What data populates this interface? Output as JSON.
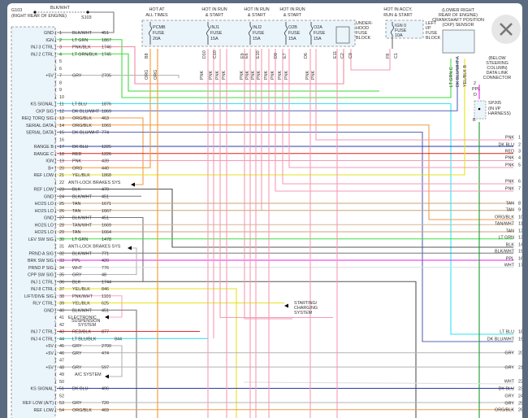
{
  "ground": {
    "g103": "G103",
    "g103_note": "(RIGHT REAR OF ENGINE)",
    "wire": "BLK/WHT",
    "s103": "S103"
  },
  "pins": [
    {
      "pin": "1",
      "label": "GND",
      "color": "BLK/WHT",
      "circuit": "451"
    },
    {
      "pin": "2",
      "label": "IGN",
      "color": "LT GRN",
      "circuit": "1867"
    },
    {
      "pin": "3",
      "label": "INJ 3 CTRL",
      "color": "PNK/BLK",
      "circuit": "1746"
    },
    {
      "pin": "4",
      "label": "INJ 2 CTRL",
      "color": "LT GRN/BLK",
      "circuit": "1745"
    },
    {
      "pin": "5",
      "label": "",
      "color": "",
      "circuit": ""
    },
    {
      "pin": "6",
      "label": "",
      "color": "",
      "circuit": ""
    },
    {
      "pin": "7",
      "label": "+5V",
      "color": "GRY",
      "circuit": "2705"
    },
    {
      "pin": "8",
      "label": "",
      "color": "",
      "circuit": ""
    },
    {
      "pin": "9",
      "label": "",
      "color": "",
      "circuit": ""
    },
    {
      "pin": "10",
      "label": "",
      "color": "",
      "circuit": ""
    },
    {
      "pin": "11",
      "label": "KS SIGNAL",
      "color": "LT BLU",
      "circuit": "1876"
    },
    {
      "pin": "12",
      "label": "CKP SIG",
      "color": "DK BLU/WHT",
      "circuit": "1869"
    },
    {
      "pin": "13",
      "label": "REQ TORQ SIG",
      "color": "ORG/BLK",
      "circuit": "463"
    },
    {
      "pin": "14",
      "label": "SERIAL DATA",
      "color": "ORG/BLK",
      "circuit": "1061"
    },
    {
      "pin": "15",
      "label": "SERIAL DATA",
      "color": "DK BLU/WHT",
      "circuit": "774"
    },
    {
      "pin": "16",
      "label": "",
      "color": "",
      "circuit": ""
    },
    {
      "pin": "17",
      "label": "RANGE B",
      "color": "DK BLU",
      "circuit": "1225"
    },
    {
      "pin": "18",
      "label": "RANGE C",
      "color": "RED",
      "circuit": "1226"
    },
    {
      "pin": "19",
      "label": "IGN",
      "color": "PNK",
      "circuit": "439"
    },
    {
      "pin": "20",
      "label": "B+",
      "color": "ORG",
      "circuit": "440"
    },
    {
      "pin": "21",
      "label": "REF LOW",
      "color": "YEL/BLK",
      "circuit": "1868"
    },
    {
      "pin": "22",
      "label": "",
      "color": "ANTI-LOCK BRAKES SYS",
      "circuit": ""
    },
    {
      "pin": "23",
      "label": "REF LOW",
      "color": "BLK",
      "circuit": "470"
    },
    {
      "pin": "24",
      "label": "GND",
      "color": "BLK/WHT",
      "circuit": "451"
    },
    {
      "pin": "25",
      "label": "HO2S LO",
      "color": "TAN",
      "circuit": "1671"
    },
    {
      "pin": "26",
      "label": "HO2S LO",
      "color": "TAN",
      "circuit": "1667"
    },
    {
      "pin": "27",
      "label": "GND",
      "color": "BLK/WHT",
      "circuit": "451"
    },
    {
      "pin": "28",
      "label": "HO2S LO",
      "color": "TAN/WHT",
      "circuit": "1669"
    },
    {
      "pin": "29",
      "label": "HO2S LO",
      "color": "TAN",
      "circuit": "1664"
    },
    {
      "pin": "30",
      "label": "LEV SW SIG",
      "color": "LT GRN",
      "circuit": "1478"
    },
    {
      "pin": "31",
      "label": "",
      "color": "ANTI-LOCK BRAKES SYS",
      "circuit": ""
    },
    {
      "pin": "32",
      "label": "PRND A SIG",
      "color": "BLK/WHT",
      "circuit": "771"
    },
    {
      "pin": "33",
      "label": "BRK SW SIG",
      "color": "PPL",
      "circuit": "420"
    },
    {
      "pin": "34",
      "label": "PRND P SIG",
      "color": "WHT",
      "circuit": "776"
    },
    {
      "pin": "35",
      "label": "CPP SW SIG",
      "color": "GRY",
      "circuit": "48"
    },
    {
      "pin": "36",
      "label": "INJ 1 CTRL",
      "color": "BLK",
      "circuit": "1744"
    },
    {
      "pin": "37",
      "label": "INJ 8 CTRL",
      "color": "YEL/BLK",
      "circuit": "846"
    },
    {
      "pin": "38",
      "label": "LIFT/DIVE SIG",
      "color": "PNK/WHT",
      "circuit": "1101"
    },
    {
      "pin": "39",
      "label": "RLY CTRL",
      "color": "YEL/BLK",
      "circuit": "625"
    },
    {
      "pin": "40",
      "label": "GND",
      "color": "BLK/WHT",
      "circuit": "451"
    },
    {
      "pin": "41",
      "label": "",
      "color": "ELECTRONIC",
      "circuit": ""
    },
    {
      "pin": "42",
      "label": "",
      "color": "",
      "circuit": ""
    },
    {
      "pin": "43",
      "label": "INJ 7 CTRL",
      "color": "RED/BLK",
      "circuit": "877"
    },
    {
      "pin": "44",
      "label": "INJ 4 CTRL",
      "color": "LT BLU/BLK",
      "circuit": "844"
    },
    {
      "pin": "45",
      "label": "+5V",
      "color": "GRY",
      "circuit": "2700"
    },
    {
      "pin": "46",
      "label": "+5V",
      "color": "GRY",
      "circuit": "474"
    },
    {
      "pin": "47",
      "label": "",
      "color": "",
      "circuit": ""
    },
    {
      "pin": "48",
      "label": "+5V",
      "color": "GRY",
      "circuit": "597"
    },
    {
      "pin": "49",
      "label": "",
      "color": "",
      "circuit": ""
    },
    {
      "pin": "50",
      "label": "",
      "color": "",
      "circuit": ""
    },
    {
      "pin": "51",
      "label": "KS SIGNAL",
      "color": "DK BLU",
      "circuit": "496"
    },
    {
      "pin": "52",
      "label": "",
      "color": "",
      "circuit": ""
    },
    {
      "pin": "53",
      "label": "REF LOW (A/T)",
      "color": "GRY",
      "circuit": "720"
    },
    {
      "pin": "54",
      "label": "REF LOW",
      "color": "ORG/BLK",
      "circuit": "469"
    }
  ],
  "notes": {
    "susp1": "SUSPENSION",
    "susp2": "SYSTEM",
    "ac": "A/C SYSTEM",
    "start1": "STARTING/",
    "start2": "CHARGING",
    "start3": "SYSTEM"
  },
  "fuses": [
    {
      "hot1": "HOT AT",
      "hot2": "ALL TIMES",
      "l1": "PCMB",
      "l2": "FUSE",
      "l3": "20A"
    },
    {
      "hot1": "HOT IN RUN",
      "hot2": "& START",
      "l1": "INJ1",
      "l2": "FUSE",
      "l3": "15A"
    },
    {
      "hot1": "HOT IN RUN",
      "hot2": "& START",
      "l1": "INJ2",
      "l2": "FUSE",
      "l3": "15A"
    },
    {
      "hot1": "HOT IN RUN",
      "hot2": "& START",
      "l1": "O2B",
      "l2": "FUSE",
      "l3": "15A"
    },
    {
      "hot1": "",
      "hot2": "",
      "l1": "O2A",
      "l2": "FUSE",
      "l3": "15A"
    }
  ],
  "underhood": [
    "UNDER-",
    "HOOD",
    "FUSE",
    "BLOCK"
  ],
  "ip_fuse": {
    "hot1": "HOT IN ACCY,",
    "hot2": "RUN & START",
    "l1": "IGN 0",
    "l2": "FUSE",
    "l3": "10A",
    "block": [
      "LEFT",
      "I/P",
      "FUSE",
      "BLOCK"
    ]
  },
  "fuse_terminals": [
    "B8",
    "D10",
    "C10",
    "E9",
    "E6",
    "E10",
    "D9",
    "E7",
    "D6",
    "E11",
    "C2",
    "C9",
    "F8",
    "C1"
  ],
  "fuse_wires": [
    "ORG",
    "ORG",
    "PNK",
    "PNK",
    "PNK",
    "PNK",
    "PNK",
    "PNK",
    "PNK",
    "PNK",
    "PNK",
    "PNK",
    "PNK",
    "PNK",
    "PNK",
    "PNK"
  ],
  "ckp": {
    "lines": [
      "(LOWER RIGHT",
      "REAR OF ENGINE)",
      "CRANKSHAFT POSITION",
      "(CKP) SENSOR"
    ],
    "pins": [
      "LT GRN  C",
      "DK BLU/WHT  A",
      "YEL/BLK  B"
    ]
  },
  "dlc": {
    "lines": [
      "(BELOW",
      "STEERING",
      "COLUMN)",
      "DATA LINK",
      "CONNECTOR"
    ],
    "pin": "2",
    "wire": "PPL",
    "term": "D",
    "splice": "SP205",
    "splice_note1": "(IN I/P",
    "splice_note2": "HARNESS)",
    "term2": "B"
  },
  "right_labels": [
    "PNK",
    "DK BLU",
    "RED",
    "PNK",
    "PNK",
    "PNK",
    "PNK",
    "TAN",
    "TAN",
    "ORG/BLK",
    "TAN/WHT",
    "TAN",
    "LT GRN",
    "BLK",
    "BLK/WHT",
    "PPL",
    "WHT",
    "LT BLU",
    "DK BLU/WHT",
    "GRY",
    "GRY",
    "WHT",
    "DK BLU",
    "GRY",
    "GRY",
    "ORG/BLK"
  ],
  "right_pins": [
    "1",
    "2",
    "3",
    "4",
    "5",
    "6",
    "7",
    "8",
    "9",
    "10",
    "11",
    "12",
    "13",
    "14",
    "15",
    "16",
    "17",
    "18",
    "19",
    "20",
    "21",
    "22",
    "23",
    "24",
    "25",
    "26"
  ],
  "close_button": {
    "icon": "close-icon"
  },
  "colors": {
    "LT GRN": "#3ee03e",
    "PNK": "#f59ab4",
    "GRY": "#b4b4b4",
    "LT BLU": "#2ee6f2",
    "DK BLU": "#2a3ca8",
    "DK BLU/WHT": "#5866b4",
    "ORG": "#f7982e",
    "ORG/BLK": "#f09a4a",
    "RED": "#e41c1c",
    "YEL/BLK": "#e6e21c",
    "BLK": "#555555",
    "BLK/WHT": "#777777",
    "TAN": "#c9a677",
    "TAN/WHT": "#d2b896",
    "PPL": "#ee22ee",
    "WHT": "#dddddd",
    "PNK/BLK": "#f08aa0",
    "LT GRN/BLK": "#3ed83e",
    "PNK/WHT": "#f8a8c0",
    "RED/BLK": "#e03030",
    "LT BLU/BLK": "#2ed8e8",
    "DK GRN": "#1a9a2a"
  }
}
